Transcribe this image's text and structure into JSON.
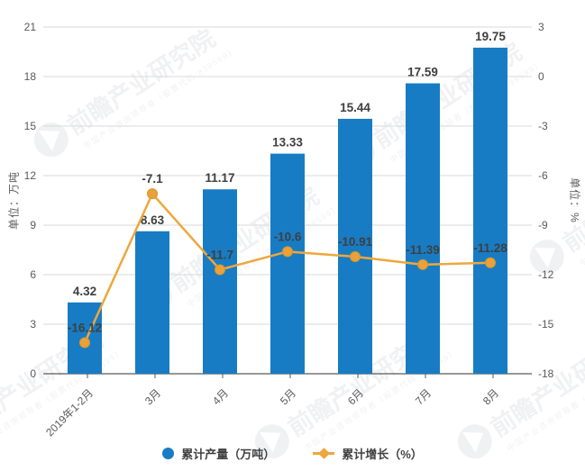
{
  "watermark": {
    "brand": "前瞻产业研究院",
    "tagline": "中国产业咨询领导者（股票代码:839599）",
    "color": "#9EA0B0"
  },
  "chart_data": {
    "type": "combo-bar-line",
    "title": "",
    "categories": [
      "2019年1-2月",
      "3月",
      "4月",
      "5月",
      "6月",
      "7月",
      "8月"
    ],
    "series": [
      {
        "name": "累计产量（万吨）",
        "kind": "bar",
        "axis": "left",
        "color": "#187CC4",
        "values": [
          4.32,
          8.63,
          11.17,
          13.33,
          15.44,
          17.59,
          19.75
        ]
      },
      {
        "name": "累计增长（%）",
        "kind": "line",
        "axis": "right",
        "color": "#EEA73C",
        "marker_color": "#E9A13B",
        "values": [
          -16.12,
          -7.1,
          -11.7,
          -10.6,
          -10.91,
          -11.39,
          -11.28
        ]
      }
    ],
    "axes": {
      "left": {
        "title": "单位：万吨",
        "min": 0,
        "max": 21,
        "step": 3,
        "ticks": [
          "21",
          "18",
          "15",
          "12",
          "9",
          "6",
          "3",
          "0"
        ]
      },
      "right": {
        "title": "单位：%",
        "min": -18,
        "max": 3,
        "step": 3,
        "ticks": [
          "3",
          "0",
          "-3",
          "-6",
          "-9",
          "-12",
          "-15",
          "-18"
        ]
      }
    },
    "grid": true,
    "legend_position": "bottom",
    "label_color": "#3F3F3F",
    "tick_color": "#595959",
    "grid_color": "#DADADA",
    "axisline_color": "#595959"
  }
}
